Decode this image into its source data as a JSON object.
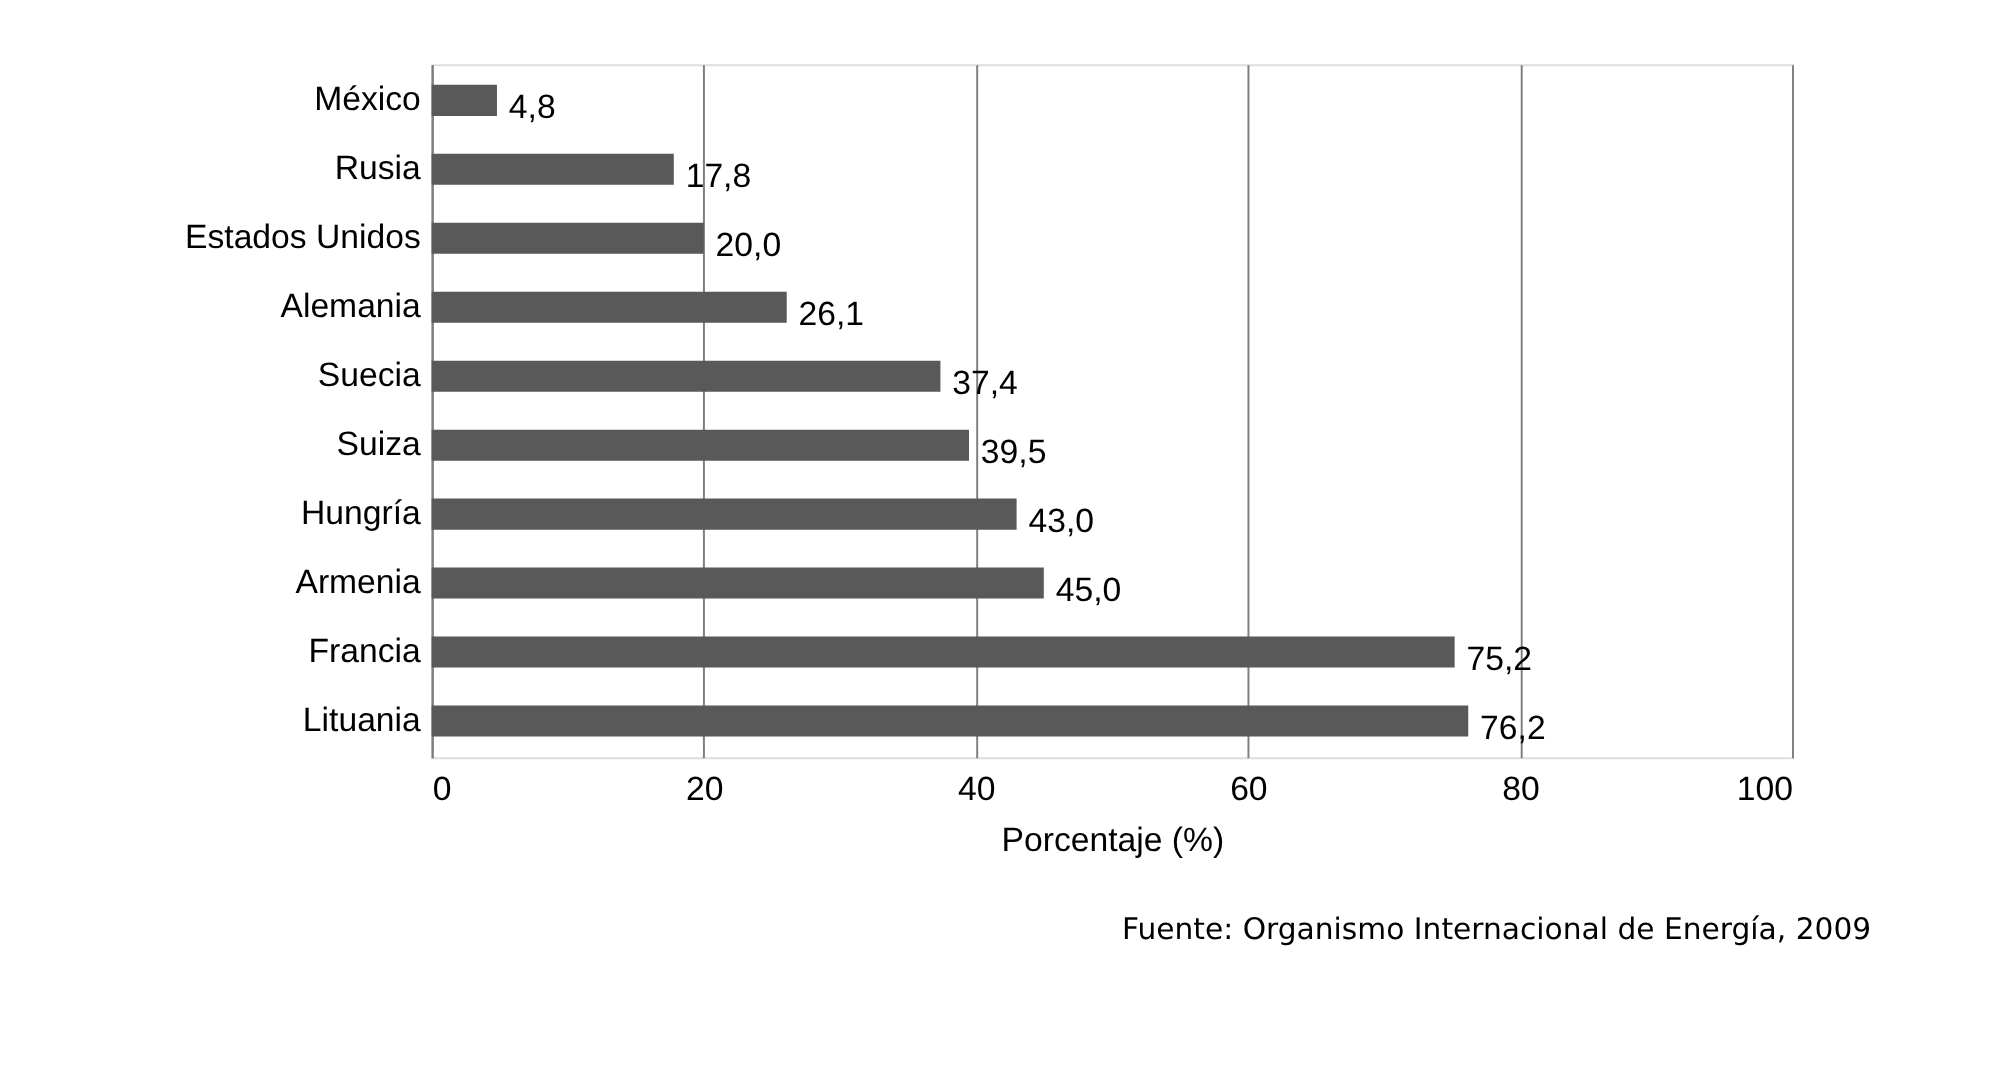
{
  "chart_data": {
    "type": "bar",
    "orientation": "horizontal",
    "categories": [
      "México",
      "Rusia",
      "Estados Unidos",
      "Alemania",
      "Suecia",
      "Suiza",
      "Hungría",
      "Armenia",
      "Francia",
      "Lituania"
    ],
    "values": [
      4.8,
      17.8,
      20.0,
      26.1,
      37.4,
      39.5,
      43.0,
      45.0,
      75.2,
      76.2
    ],
    "value_labels": [
      "4,8",
      "17,8",
      "20,0",
      "26,1",
      "37,4",
      "39,5",
      "43,0",
      "45,0",
      "75,2",
      "76,2"
    ],
    "color": "#595959",
    "xlabel": "Porcentaje (%)",
    "xlim": [
      0,
      100
    ],
    "xticks": [
      0,
      20,
      40,
      60,
      80,
      100
    ],
    "grid": "x",
    "annotations": [
      "Fuente: Organismo Internacional de Energía, 2009"
    ]
  }
}
